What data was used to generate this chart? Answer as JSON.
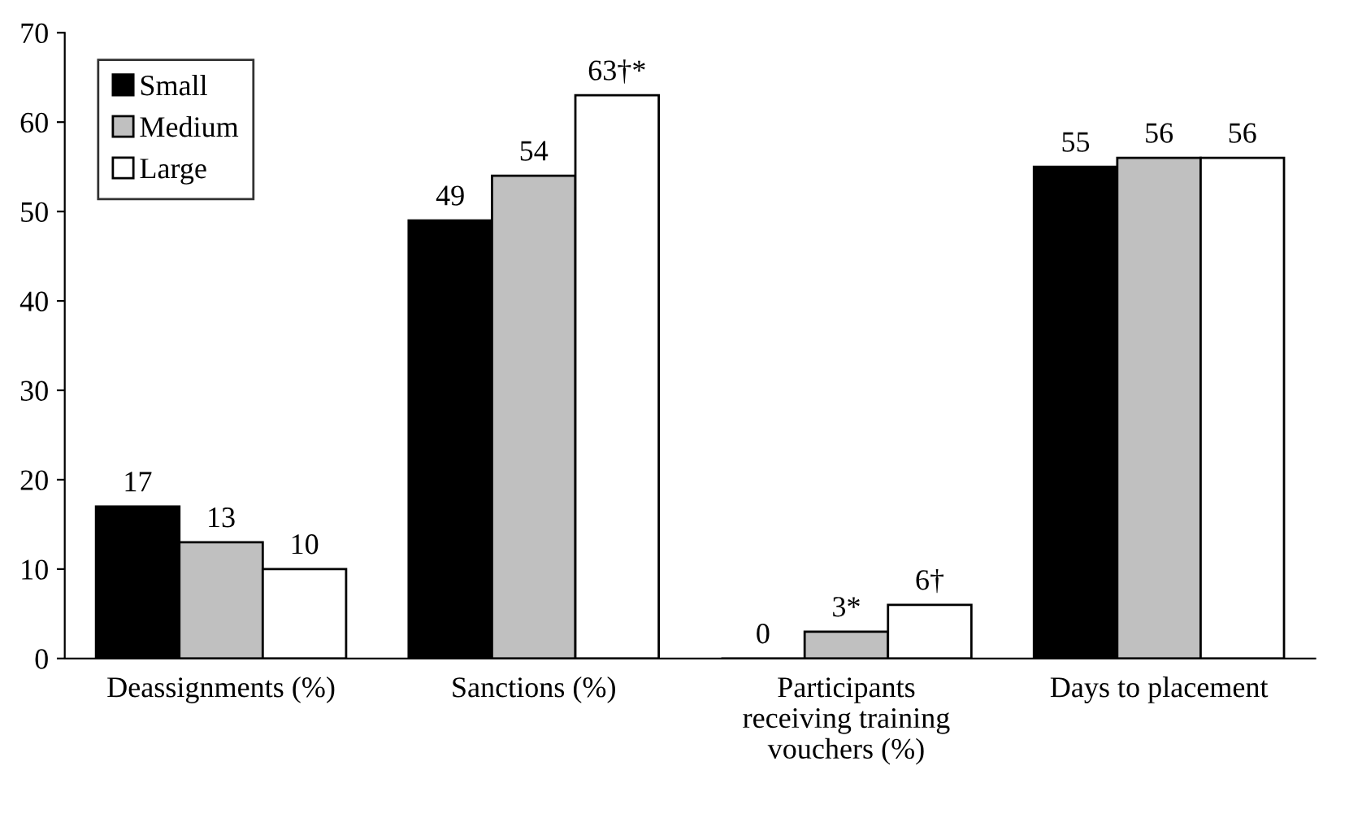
{
  "chart_data": {
    "type": "bar",
    "categories": [
      "Deassignments (%)",
      "Sanctions (%)",
      "Participants\nreceiving training\nvouchers (%)",
      "Days to placement"
    ],
    "series": [
      {
        "name": "Small",
        "color": "#000000",
        "values": [
          17,
          49,
          0,
          55
        ],
        "value_labels": [
          "17",
          "49",
          "0",
          "55"
        ]
      },
      {
        "name": "Medium",
        "color": "#c0c0c0",
        "values": [
          13,
          54,
          3,
          56
        ],
        "value_labels": [
          "13",
          "54",
          "3*",
          "56"
        ]
      },
      {
        "name": "Large",
        "color": "#ffffff",
        "values": [
          10,
          63,
          6,
          56
        ],
        "value_labels": [
          "10",
          "63†*",
          "6†",
          "56"
        ]
      }
    ],
    "ylim": [
      0,
      70
    ],
    "yticks": [
      0,
      10,
      20,
      30,
      40,
      50,
      60,
      70
    ],
    "grid": false,
    "legend": "top left"
  }
}
